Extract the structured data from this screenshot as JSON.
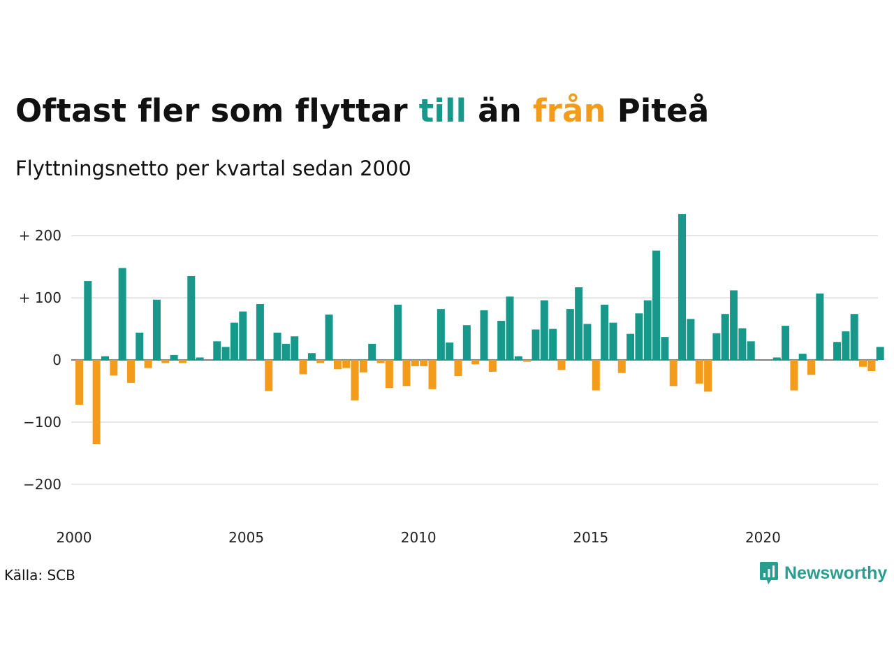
{
  "header": {
    "title_part1": "Oftast fler som flyttar ",
    "title_pos": "till",
    "title_part2": " än ",
    "title_neg": "från",
    "title_part3": " Piteå",
    "subtitle": "Flyttningsnetto per kvartal sedan 2000"
  },
  "footer": {
    "source": "Källa: SCB",
    "brand": "Newsworthy",
    "brand_icon": "chart-speech-bubble-icon"
  },
  "colors": {
    "positive": "#17988a",
    "negative": "#f39c1c",
    "grid": "#dddddd",
    "brand": "#2a9d8f"
  },
  "chart_data": {
    "type": "bar",
    "title": "Oftast fler som flyttar till än från Piteå",
    "subtitle": "Flyttningsnetto per kvartal sedan 2000",
    "xlabel": "",
    "ylabel": "",
    "ylim": [
      -250,
      240
    ],
    "yticks": [
      200,
      100,
      0,
      -100,
      -200
    ],
    "ytick_labels": [
      "+ 200",
      "+ 100",
      "0",
      "−100",
      "−200"
    ],
    "xticks": [
      2000,
      2005,
      2010,
      2015,
      2020
    ],
    "start_year": 2000,
    "periods_per_year": 4,
    "grid": true,
    "legend": "none",
    "values": [
      -72,
      127,
      -135,
      6,
      -25,
      148,
      -37,
      44,
      -13,
      97,
      -5,
      8,
      -5,
      135,
      4,
      0,
      30,
      21,
      60,
      78,
      0,
      90,
      -50,
      44,
      26,
      38,
      -23,
      11,
      -5,
      73,
      -15,
      -13,
      -65,
      -20,
      26,
      -5,
      -45,
      89,
      -42,
      -10,
      -10,
      -47,
      82,
      28,
      -26,
      56,
      -7,
      80,
      -19,
      63,
      102,
      6,
      -3,
      49,
      96,
      50,
      -16,
      82,
      117,
      58,
      -49,
      89,
      60,
      -21,
      42,
      75,
      96,
      176,
      37,
      -42,
      235,
      66,
      -38,
      -51,
      43,
      74,
      112,
      51,
      30,
      0,
      0,
      4,
      55,
      -49,
      10,
      -24,
      107,
      0,
      29,
      46,
      74,
      -11,
      -18,
      21
    ]
  }
}
